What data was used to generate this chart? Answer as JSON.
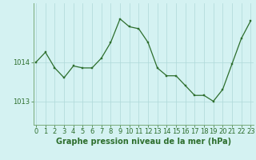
{
  "hours": [
    0,
    1,
    2,
    3,
    4,
    5,
    6,
    7,
    8,
    9,
    10,
    11,
    12,
    13,
    14,
    15,
    16,
    17,
    18,
    19,
    20,
    21,
    22,
    23
  ],
  "pressure": [
    1014.0,
    1014.25,
    1013.85,
    1013.6,
    1013.9,
    1013.85,
    1013.85,
    1014.1,
    1014.5,
    1015.1,
    1014.9,
    1014.85,
    1014.5,
    1013.85,
    1013.65,
    1013.65,
    1013.4,
    1013.15,
    1013.15,
    1013.0,
    1013.3,
    1013.95,
    1014.6,
    1015.05
  ],
  "line_color": "#2d6e2d",
  "marker_color": "#2d6e2d",
  "bg_color": "#d4f2f2",
  "grid_color": "#aed8d8",
  "xlabel": "Graphe pression niveau de la mer (hPa)",
  "ytick_vals": [
    1013,
    1014
  ],
  "ytick_labels": [
    "1013",
    "1014"
  ],
  "ylim": [
    1012.4,
    1015.5
  ],
  "xlim": [
    -0.3,
    23.3
  ],
  "tick_fontsize": 6.0,
  "xlabel_fontsize": 7.0
}
